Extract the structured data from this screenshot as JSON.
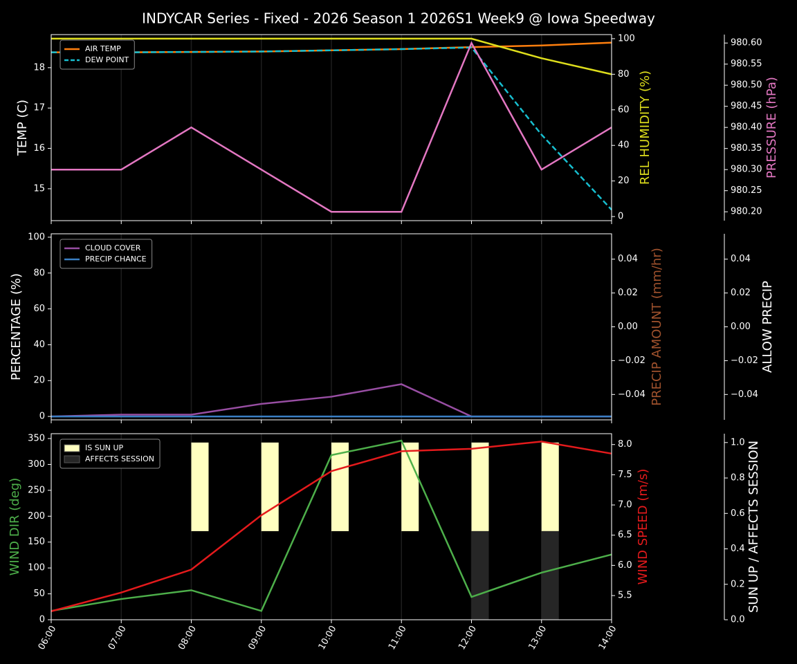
{
  "title": "INDYCAR Series - Fixed - 2026 Season 1 2026S1 Week9 @ Iowa Speedway",
  "chart_data": [
    {
      "type": "line",
      "grid": true,
      "legend": "upper left",
      "categories": [
        "06:00",
        "07:00",
        "08:00",
        "09:00",
        "10:00",
        "11:00",
        "12:00",
        "13:00",
        "14:00"
      ],
      "ylabel": "TEMP (C)",
      "ylabel_color": "#ffffff",
      "ylim": [
        14.21,
        18.82
      ],
      "yticks": [
        15,
        16,
        17,
        18
      ],
      "y2label": "REL HUMIDITY (%)",
      "y2label_color": "#dede1c",
      "y2lim": [
        -2.3,
        102.3
      ],
      "y2ticks": [
        0,
        20,
        40,
        60,
        80,
        100
      ],
      "y3label": "PRESSURE (hPa)",
      "y3label_color": "#e377c2",
      "y3lim": [
        980.179,
        980.62
      ],
      "y3ticks": [
        {
          "value": 980.2,
          "label": "980.20"
        },
        {
          "value": 980.25,
          "label": "980.25"
        },
        {
          "value": 980.3,
          "label": "980.30"
        },
        {
          "value": 980.35,
          "label": "980.35"
        },
        {
          "value": 980.4,
          "label": "980.40"
        },
        {
          "value": 980.45,
          "label": "980.45"
        },
        {
          "value": 980.5,
          "label": "980.50"
        },
        {
          "value": 980.55,
          "label": "980.55"
        },
        {
          "value": 980.6,
          "label": "980.60"
        }
      ],
      "series": [
        {
          "name": "AIR TEMP",
          "color": "#ff7f0e",
          "axis": "y",
          "legend": true,
          "values": [
            18.38,
            18.38,
            18.39,
            18.4,
            18.43,
            18.46,
            18.51,
            18.55,
            18.62
          ]
        },
        {
          "name": "DEW POINT",
          "color": "#17becf",
          "axis": "y",
          "legend": true,
          "dashed": true,
          "values": [
            18.38,
            18.38,
            18.39,
            18.4,
            18.43,
            18.46,
            18.5,
            16.34,
            14.48
          ]
        },
        {
          "color": "#dede1c",
          "axis": "y2",
          "values": [
            100,
            100,
            100,
            100,
            100,
            100,
            100,
            89,
            80
          ]
        },
        {
          "color": "#e377c2",
          "axis": "y3",
          "values": [
            980.3,
            980.3,
            980.4,
            980.3,
            980.2,
            980.2,
            980.6,
            980.3,
            980.4
          ]
        }
      ]
    },
    {
      "type": "line",
      "grid": true,
      "legend": "upper left",
      "categories": [
        "06:00",
        "07:00",
        "08:00",
        "09:00",
        "10:00",
        "11:00",
        "12:00",
        "13:00",
        "14:00"
      ],
      "ylabel": "PERCENTAGE (%)",
      "ylabel_color": "#ffffff",
      "ylim": [
        -1.9,
        101.9
      ],
      "yticks": [
        0,
        20,
        40,
        60,
        80,
        100
      ],
      "y2label": "PRECIP AMOUNT (mm/hr)",
      "y2label_color": "#a0522d",
      "y2lim": [
        -0.055,
        0.055
      ],
      "y2ticks": [
        {
          "value": -0.04,
          "label": "−0.04"
        },
        {
          "value": -0.02,
          "label": "−0.02"
        },
        {
          "value": 0,
          "label": "0.00"
        },
        0.02,
        0.04
      ],
      "y3label": "ALLOW PRECIP",
      "y3label_color": "#ffffff",
      "y3lim": [
        -0.055,
        0.055
      ],
      "y3ticks": [
        {
          "value": -0.04,
          "label": "−0.04"
        },
        {
          "value": -0.02,
          "label": "−0.02"
        },
        {
          "value": 0,
          "label": "0.00"
        },
        0.02,
        0.04
      ],
      "series": [
        {
          "name": "CLOUD COVER",
          "color": "#984ea3",
          "axis": "y",
          "legend": true,
          "values": [
            0,
            1,
            1,
            7,
            11,
            18,
            0,
            0,
            0
          ]
        },
        {
          "name": "PRECIP CHANCE",
          "color": "#3a7fc4",
          "axis": "y",
          "legend": true,
          "values": [
            0,
            0,
            0,
            0,
            0,
            0,
            0,
            0,
            0
          ]
        }
      ]
    },
    {
      "type": "line",
      "grid": true,
      "legend": "upper left",
      "categories": [
        "06:00",
        "07:00",
        "08:00",
        "09:00",
        "10:00",
        "11:00",
        "12:00",
        "13:00",
        "14:00"
      ],
      "ylabel": "WIND DIR (deg)",
      "ylabel_color": "#4daf4a",
      "ylim": [
        0,
        359.4
      ],
      "yticks": [
        0,
        50,
        100,
        150,
        200,
        250,
        300,
        350
      ],
      "y2label": "WIND SPEED (m/s)",
      "y2label_color": "#e41a1c",
      "y2lim": [
        5.1,
        8.18
      ],
      "y2ticks": [
        5.5,
        {
          "value": 6,
          "label": "6.0"
        },
        6.5,
        {
          "value": 7,
          "label": "7.0"
        },
        7.5,
        {
          "value": 8,
          "label": "8.0"
        }
      ],
      "y3label": "SUN UP / AFFECTS SESSION",
      "y3label_color": "#ffffff",
      "y3lim": [
        0,
        1.05
      ],
      "y3ticks": [
        {
          "value": 0,
          "label": "0.0"
        },
        0.2,
        0.4,
        0.6,
        0.8,
        {
          "value": 1,
          "label": "1.0"
        }
      ],
      "series": [
        {
          "name": "IS SUN UP",
          "kind": "bar",
          "half": "upper",
          "color": "#ffffc0",
          "axis": "y3",
          "legend": true,
          "values": [
            0,
            0,
            1,
            1,
            1,
            1,
            1,
            1,
            0
          ]
        },
        {
          "name": "AFFECTS SESSION",
          "kind": "bar",
          "half": "lower",
          "color": "#262626",
          "axis": "y3",
          "legend": true,
          "values": [
            0,
            0,
            0,
            0,
            0,
            0,
            1,
            1,
            0
          ]
        },
        {
          "color": "#4daf4a",
          "axis": "y",
          "values": [
            17,
            40,
            57,
            17,
            318,
            346,
            44,
            91,
            126
          ]
        },
        {
          "color": "#e41a1c",
          "axis": "y2",
          "values": [
            5.24,
            5.55,
            5.93,
            6.83,
            7.56,
            7.89,
            7.93,
            8.05,
            7.85
          ]
        }
      ]
    }
  ]
}
